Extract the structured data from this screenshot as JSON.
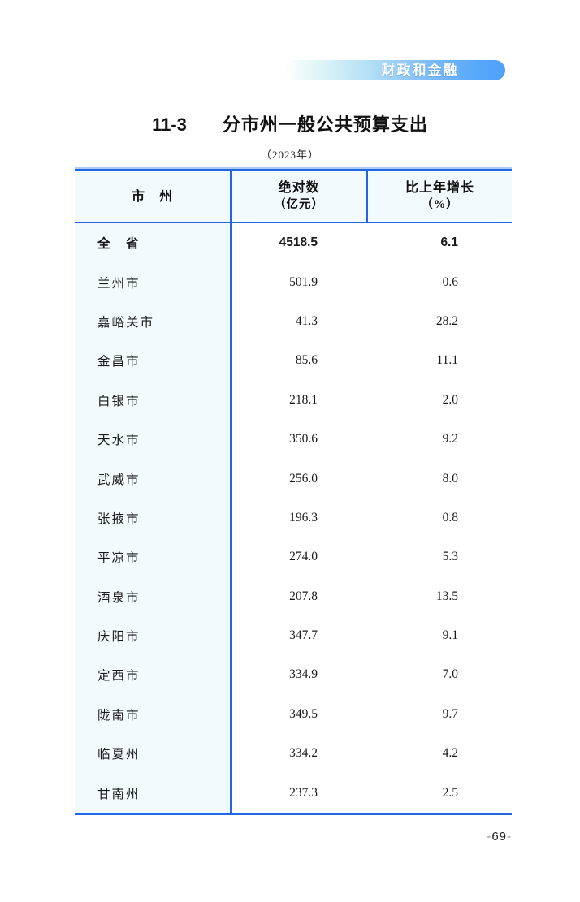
{
  "page": {
    "section_badge": "财政和金融",
    "pagination": {
      "dash_left": "-",
      "number": "69",
      "dash_right": "-"
    }
  },
  "header": {
    "table_number": "11-3",
    "title": "分市州一般公共预算支出",
    "subtitle": "（2023年）"
  },
  "table": {
    "columns": {
      "region": "市　州",
      "absolute_line1": "绝对数",
      "absolute_line2": "（亿元）",
      "growth_line1": "比上年增长",
      "growth_line2": "（%）"
    },
    "rows": [
      {
        "region": "全　省",
        "value": "4518.5",
        "growth": "6.1"
      },
      {
        "region": "兰州市",
        "value": "501.9",
        "growth": "0.6"
      },
      {
        "region": "嘉峪关市",
        "value": "41.3",
        "growth": "28.2"
      },
      {
        "region": "金昌市",
        "value": "85.6",
        "growth": "11.1"
      },
      {
        "region": "白银市",
        "value": "218.1",
        "growth": "2.0"
      },
      {
        "region": "天水市",
        "value": "350.6",
        "growth": "9.2"
      },
      {
        "region": "武威市",
        "value": "256.0",
        "growth": "8.0"
      },
      {
        "region": "张掖市",
        "value": "196.3",
        "growth": "0.8"
      },
      {
        "region": "平凉市",
        "value": "274.0",
        "growth": "5.3"
      },
      {
        "region": "酒泉市",
        "value": "207.8",
        "growth": "13.5"
      },
      {
        "region": "庆阳市",
        "value": "347.7",
        "growth": "9.1"
      },
      {
        "region": "定西市",
        "value": "334.9",
        "growth": "7.0"
      },
      {
        "region": "陇南市",
        "value": "349.5",
        "growth": "9.7"
      },
      {
        "region": "临夏州",
        "value": "334.2",
        "growth": "4.2"
      },
      {
        "region": "甘南州",
        "value": "237.3",
        "growth": "2.5"
      }
    ]
  },
  "colors": {
    "accent_blue": "#2166e5",
    "badge_blue": "#57a7fa",
    "light_blue_bg": "#f2fafd"
  }
}
